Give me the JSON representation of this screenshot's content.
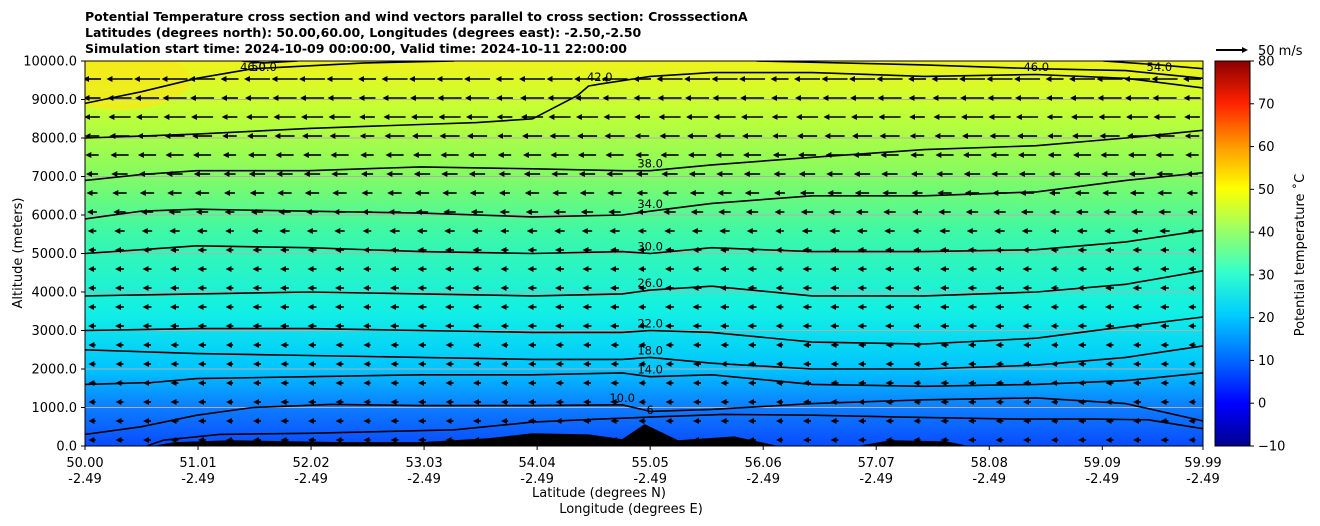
{
  "title": {
    "line1": "Potential Temperature cross section and wind vectors parallel to cross section: CrosssectionA",
    "line2": "Latitudes (degrees north): 50.00,60.00, Longitudes (degrees east): -2.50,-2.50",
    "line3": "Simulation start time: 2024-10-09 00:00:00, Valid time: 2024-10-11 22:00:00"
  },
  "quiver_key": {
    "label": "50 m/s"
  },
  "chart_data": {
    "type": "heatmap",
    "title": "Potential Temperature cross section and wind vectors parallel to cross section: CrosssectionA",
    "ylabel": "Altitude (meters)",
    "xlabel_line1": "Latitude (degrees N)",
    "xlabel_line2": "Longitude (degrees E)",
    "ylim": [
      0,
      10000
    ],
    "yticks": [
      "0.0",
      "1000.0",
      "2000.0",
      "3000.0",
      "4000.0",
      "5000.0",
      "6000.0",
      "7000.0",
      "8000.0",
      "9000.0",
      "10000.0"
    ],
    "ytick_values": [
      0,
      1000,
      2000,
      3000,
      4000,
      5000,
      6000,
      7000,
      8000,
      9000,
      10000
    ],
    "xlim": [
      50.0,
      59.99
    ],
    "xtick_values": [
      50.0,
      51.01,
      52.02,
      53.03,
      54.04,
      55.05,
      56.06,
      57.07,
      58.08,
      59.09,
      59.99
    ],
    "xticks_lat": [
      "50.00",
      "51.01",
      "52.02",
      "53.03",
      "54.04",
      "55.05",
      "56.06",
      "57.07",
      "58.08",
      "59.09",
      "59.99"
    ],
    "xticks_lon": [
      "-2.49",
      "-2.49",
      "-2.49",
      "-2.49",
      "-2.49",
      "-2.49",
      "-2.49",
      "-2.49",
      "-2.49",
      "-2.49",
      "-2.49"
    ],
    "grid": "horizontal",
    "colorbar": {
      "label": "Potential temperature ˚C",
      "range": [
        -10,
        80
      ],
      "ticks": [
        "−10",
        "0",
        "10",
        "20",
        "30",
        "40",
        "50",
        "60",
        "70",
        "80"
      ],
      "tick_values": [
        -10,
        0,
        10,
        20,
        30,
        40,
        50,
        60,
        70,
        80
      ],
      "colormap": "jet"
    },
    "contours": [
      {
        "value": 6,
        "label": "6",
        "points": [
          [
            50.55,
            0
          ],
          [
            50.7,
            150
          ],
          [
            51.2,
            300
          ],
          [
            52.0,
            330
          ],
          [
            52.7,
            380
          ],
          [
            53.3,
            420
          ],
          [
            54.0,
            620
          ],
          [
            54.6,
            700
          ],
          [
            55.05,
            750
          ],
          [
            55.7,
            820
          ],
          [
            56.5,
            800
          ],
          [
            57.3,
            750
          ],
          [
            58.3,
            700
          ],
          [
            59.0,
            700
          ],
          [
            59.5,
            680
          ],
          [
            59.99,
            450
          ]
        ]
      },
      {
        "value": 10,
        "label": "10.0",
        "points": [
          [
            50.0,
            300
          ],
          [
            50.5,
            500
          ],
          [
            51.0,
            800
          ],
          [
            51.5,
            1000
          ],
          [
            52.2,
            1080
          ],
          [
            53.0,
            1050
          ],
          [
            54.0,
            1050
          ],
          [
            54.8,
            1070
          ],
          [
            55.05,
            900
          ],
          [
            55.6,
            950
          ],
          [
            56.5,
            1100
          ],
          [
            57.5,
            1200
          ],
          [
            58.5,
            1250
          ],
          [
            59.3,
            1100
          ],
          [
            59.99,
            650
          ]
        ]
      },
      {
        "value": 14,
        "label": "14.0",
        "points": [
          [
            50.0,
            1600
          ],
          [
            50.6,
            1650
          ],
          [
            51.0,
            1750
          ],
          [
            52.0,
            1800
          ],
          [
            53.0,
            1850
          ],
          [
            54.0,
            1850
          ],
          [
            54.8,
            1900
          ],
          [
            55.05,
            1800
          ],
          [
            55.6,
            1850
          ],
          [
            56.5,
            1600
          ],
          [
            57.5,
            1550
          ],
          [
            58.5,
            1600
          ],
          [
            59.3,
            1700
          ],
          [
            59.99,
            1900
          ]
        ]
      },
      {
        "value": 18,
        "label": "18.0",
        "points": [
          [
            50.0,
            2500
          ],
          [
            50.5,
            2450
          ],
          [
            51.0,
            2400
          ],
          [
            52.0,
            2350
          ],
          [
            53.0,
            2300
          ],
          [
            54.0,
            2250
          ],
          [
            54.8,
            2250
          ],
          [
            55.05,
            2300
          ],
          [
            55.6,
            2150
          ],
          [
            56.5,
            2000
          ],
          [
            57.5,
            2000
          ],
          [
            58.5,
            2100
          ],
          [
            59.3,
            2300
          ],
          [
            59.99,
            2600
          ]
        ]
      },
      {
        "value": 22,
        "label": "22.0",
        "points": [
          [
            50.0,
            3000
          ],
          [
            51.0,
            3050
          ],
          [
            52.0,
            3050
          ],
          [
            53.0,
            3000
          ],
          [
            54.0,
            2950
          ],
          [
            54.8,
            2950
          ],
          [
            55.05,
            3000
          ],
          [
            55.6,
            2950
          ],
          [
            56.5,
            2700
          ],
          [
            57.5,
            2650
          ],
          [
            58.5,
            2800
          ],
          [
            59.3,
            3100
          ],
          [
            59.99,
            3350
          ]
        ]
      },
      {
        "value": 26,
        "label": "26.0",
        "points": [
          [
            50.0,
            3900
          ],
          [
            51.0,
            3950
          ],
          [
            52.0,
            4000
          ],
          [
            53.0,
            3950
          ],
          [
            54.0,
            3900
          ],
          [
            54.8,
            3950
          ],
          [
            55.05,
            4050
          ],
          [
            55.6,
            4150
          ],
          [
            56.5,
            3900
          ],
          [
            57.5,
            3900
          ],
          [
            58.5,
            4000
          ],
          [
            59.3,
            4200
          ],
          [
            59.99,
            4550
          ]
        ]
      },
      {
        "value": 30,
        "label": "30.0",
        "points": [
          [
            50.0,
            5000
          ],
          [
            50.5,
            5100
          ],
          [
            51.0,
            5200
          ],
          [
            52.0,
            5150
          ],
          [
            53.0,
            5050
          ],
          [
            54.0,
            5000
          ],
          [
            54.8,
            5050
          ],
          [
            55.05,
            5000
          ],
          [
            55.6,
            5150
          ],
          [
            56.5,
            5050
          ],
          [
            57.5,
            5050
          ],
          [
            58.5,
            5100
          ],
          [
            59.3,
            5300
          ],
          [
            59.99,
            5600
          ]
        ]
      },
      {
        "value": 34,
        "label": "34.0",
        "points": [
          [
            50.0,
            5900
          ],
          [
            50.5,
            6100
          ],
          [
            51.0,
            6150
          ],
          [
            52.0,
            6100
          ],
          [
            53.0,
            6050
          ],
          [
            54.0,
            5950
          ],
          [
            54.8,
            6000
          ],
          [
            55.05,
            6100
          ],
          [
            55.6,
            6300
          ],
          [
            56.5,
            6500
          ],
          [
            57.5,
            6500
          ],
          [
            58.5,
            6600
          ],
          [
            59.3,
            6900
          ],
          [
            59.99,
            7100
          ]
        ]
      },
      {
        "value": 38,
        "label": "38.0",
        "points": [
          [
            50.0,
            6900
          ],
          [
            50.5,
            7050
          ],
          [
            51.0,
            7150
          ],
          [
            52.0,
            7150
          ],
          [
            53.0,
            7250
          ],
          [
            54.0,
            7200
          ],
          [
            54.8,
            7150
          ],
          [
            55.05,
            7150
          ],
          [
            55.6,
            7300
          ],
          [
            56.5,
            7500
          ],
          [
            57.5,
            7700
          ],
          [
            58.5,
            7800
          ],
          [
            59.3,
            8000
          ],
          [
            59.99,
            8200
          ]
        ]
      },
      {
        "value": 42,
        "label": "42.0",
        "points": [
          [
            50.0,
            8000
          ],
          [
            51.0,
            8100
          ],
          [
            52.0,
            8250
          ],
          [
            53.0,
            8350
          ],
          [
            53.5,
            8400
          ],
          [
            54.0,
            8500
          ],
          [
            54.4,
            9100
          ],
          [
            54.5,
            9350
          ],
          [
            54.6,
            9400
          ],
          [
            55.05,
            9600
          ],
          [
            55.6,
            9700
          ],
          [
            56.5,
            9700
          ],
          [
            57.5,
            9600
          ],
          [
            58.5,
            9650
          ],
          [
            59.3,
            9550
          ],
          [
            59.99,
            9300
          ]
        ]
      },
      {
        "value": 46,
        "label": "46.0",
        "points": [
          [
            50.0,
            8900
          ],
          [
            50.5,
            9200
          ],
          [
            51.0,
            9550
          ],
          [
            51.5,
            9800
          ],
          [
            52.5,
            9950
          ],
          [
            53.3,
            10000
          ]
        ]
      },
      {
        "value": 46,
        "label": "46.0",
        "points": [
          [
            56.0,
            10000
          ],
          [
            57.5,
            9900
          ],
          [
            58.5,
            9800
          ],
          [
            59.3,
            9750
          ],
          [
            59.99,
            9550
          ]
        ]
      },
      {
        "value": 50,
        "label": "50.0",
        "points": [
          [
            51.4,
            10000
          ],
          [
            51.6,
            9950
          ],
          [
            51.9,
            10000
          ]
        ]
      },
      {
        "value": 54,
        "label": "54.0",
        "points": [
          [
            59.1,
            10000
          ],
          [
            59.6,
            9900
          ],
          [
            59.99,
            9800
          ]
        ]
      }
    ],
    "terrain_peak_m": [
      [
        50.6,
        0
      ],
      [
        50.8,
        100
      ],
      [
        51.3,
        150
      ],
      [
        52.3,
        100
      ],
      [
        53.0,
        100
      ],
      [
        53.6,
        200
      ],
      [
        54.0,
        330
      ],
      [
        54.5,
        300
      ],
      [
        54.8,
        180
      ],
      [
        55.0,
        570
      ],
      [
        55.3,
        150
      ],
      [
        55.8,
        250
      ],
      [
        56.2,
        0
      ],
      [
        56.9,
        0
      ],
      [
        57.2,
        150
      ],
      [
        57.7,
        120
      ],
      [
        57.9,
        0
      ]
    ]
  }
}
